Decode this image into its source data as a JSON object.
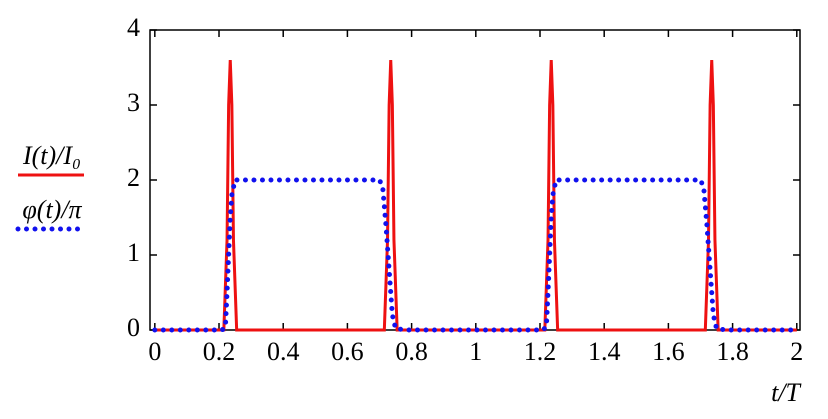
{
  "chart_data": {
    "type": "line",
    "x_label": "t/T",
    "xlim": [
      -0.015,
      2.01
    ],
    "ylim": [
      0,
      4
    ],
    "xticks": [
      0,
      0.2,
      0.4,
      0.6,
      0.8,
      1,
      1.2,
      1.4,
      1.6,
      1.8,
      2
    ],
    "yticks": [
      0,
      1,
      2,
      3,
      4
    ],
    "grid": false,
    "legend": "left",
    "series": [
      {
        "name": "I(t)/I₀",
        "color": "#ee1111",
        "style": "solid",
        "x": [
          0,
          0.215,
          0.225,
          0.23,
          0.235,
          0.24,
          0.245,
          0.255,
          0.715,
          0.725,
          0.73,
          0.735,
          0.74,
          0.745,
          0.755,
          1.215,
          1.225,
          1.23,
          1.235,
          1.24,
          1.245,
          1.255,
          1.715,
          1.725,
          1.73,
          1.735,
          1.74,
          1.745,
          1.755,
          2
        ],
        "values": [
          0,
          0,
          1.2,
          3.0,
          3.6,
          3.0,
          1.2,
          0,
          0,
          1.2,
          3.0,
          3.6,
          3.0,
          1.2,
          0,
          0,
          1.2,
          3.0,
          3.6,
          3.0,
          1.2,
          0,
          0,
          1.2,
          3.0,
          3.6,
          3.0,
          1.2,
          0,
          0
        ]
      },
      {
        "name": "φ(t)/π",
        "color": "#1111ee",
        "style": "dotted",
        "x": [
          0,
          0.21,
          0.22,
          0.225,
          0.23,
          0.235,
          0.24,
          0.25,
          0.7,
          0.71,
          0.72,
          0.73,
          0.74,
          0.75,
          0.78,
          1.2,
          1.21,
          1.22,
          1.225,
          1.23,
          1.235,
          1.24,
          1.25,
          1.7,
          1.71,
          1.72,
          1.73,
          1.74,
          1.75,
          1.78,
          2
        ],
        "values": [
          0,
          0,
          0.05,
          0.5,
          1.0,
          1.5,
          1.8,
          2,
          2,
          1.9,
          1.4,
          0.8,
          0.2,
          0.02,
          0,
          0,
          0,
          0.05,
          0.5,
          1.0,
          1.5,
          1.8,
          2,
          2,
          1.9,
          1.4,
          0.8,
          0.2,
          0.02,
          0,
          0
        ]
      }
    ]
  }
}
